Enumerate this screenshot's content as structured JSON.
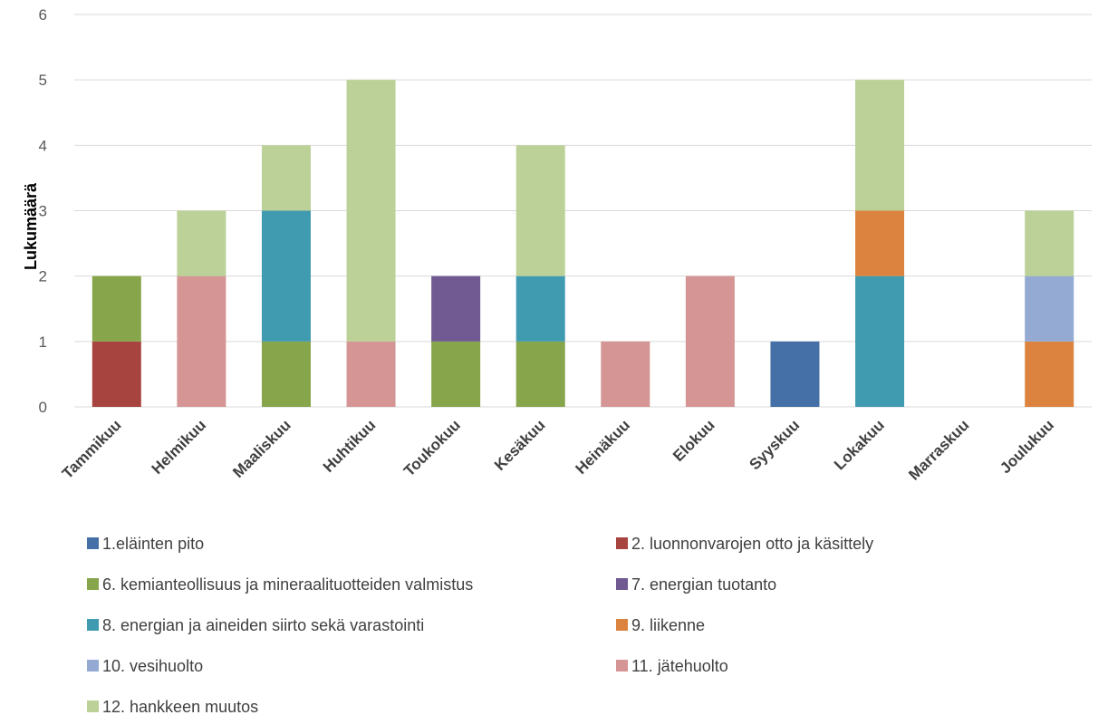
{
  "chart_data": {
    "type": "bar",
    "stacked": true,
    "title": "",
    "xlabel": "",
    "ylabel": "Lukumäärä",
    "ylim": [
      0,
      6
    ],
    "yticks": [
      0,
      1,
      2,
      3,
      4,
      5,
      6
    ],
    "grid": true,
    "legend_position": "bottom",
    "categories": [
      "Tammikuu",
      "Helmikuu",
      "Maaliskuu",
      "Huhtikuu",
      "Toukokuu",
      "Kesäkuu",
      "Heinäkuu",
      "Elokuu",
      "Syyskuu",
      "Lokakuu",
      "Marraskuu",
      "Joulukuu"
    ],
    "series": [
      {
        "name": "1.eläinten pito",
        "color": "#4470a7",
        "values": [
          0,
          0,
          0,
          0,
          0,
          0,
          0,
          0,
          1,
          0,
          0,
          0
        ]
      },
      {
        "name": "2. luonnonvarojen otto ja käsittely",
        "color": "#a8443f",
        "values": [
          1,
          0,
          0,
          0,
          0,
          0,
          0,
          0,
          0,
          0,
          0,
          0
        ]
      },
      {
        "name": "6. kemianteollisuus ja mineraalituotteiden valmistus",
        "color": "#87a54b",
        "values": [
          1,
          0,
          1,
          0,
          1,
          1,
          0,
          0,
          0,
          0,
          0,
          0
        ]
      },
      {
        "name": "7. energian tuotanto",
        "color": "#715a91",
        "values": [
          0,
          0,
          0,
          0,
          1,
          0,
          0,
          0,
          0,
          0,
          0,
          0
        ]
      },
      {
        "name": "8. energian ja aineiden siirto sekä varastointi",
        "color": "#409bb0",
        "values": [
          0,
          0,
          2,
          0,
          0,
          1,
          0,
          0,
          0,
          2,
          0,
          0
        ]
      },
      {
        "name": "9. liikenne",
        "color": "#dc843f",
        "values": [
          0,
          0,
          0,
          0,
          0,
          0,
          0,
          0,
          0,
          1,
          0,
          1
        ]
      },
      {
        "name": "10. vesihuolto",
        "color": "#94aad3",
        "values": [
          0,
          0,
          0,
          0,
          0,
          0,
          0,
          0,
          0,
          0,
          0,
          1
        ]
      },
      {
        "name": "11. jätehuolto",
        "color": "#d49594",
        "values": [
          0,
          2,
          0,
          1,
          0,
          0,
          1,
          2,
          0,
          0,
          0,
          0
        ]
      },
      {
        "name": "12. hankkeen muutos",
        "color": "#bcd198",
        "values": [
          0,
          1,
          1,
          4,
          0,
          2,
          0,
          0,
          0,
          2,
          0,
          1
        ]
      }
    ]
  }
}
